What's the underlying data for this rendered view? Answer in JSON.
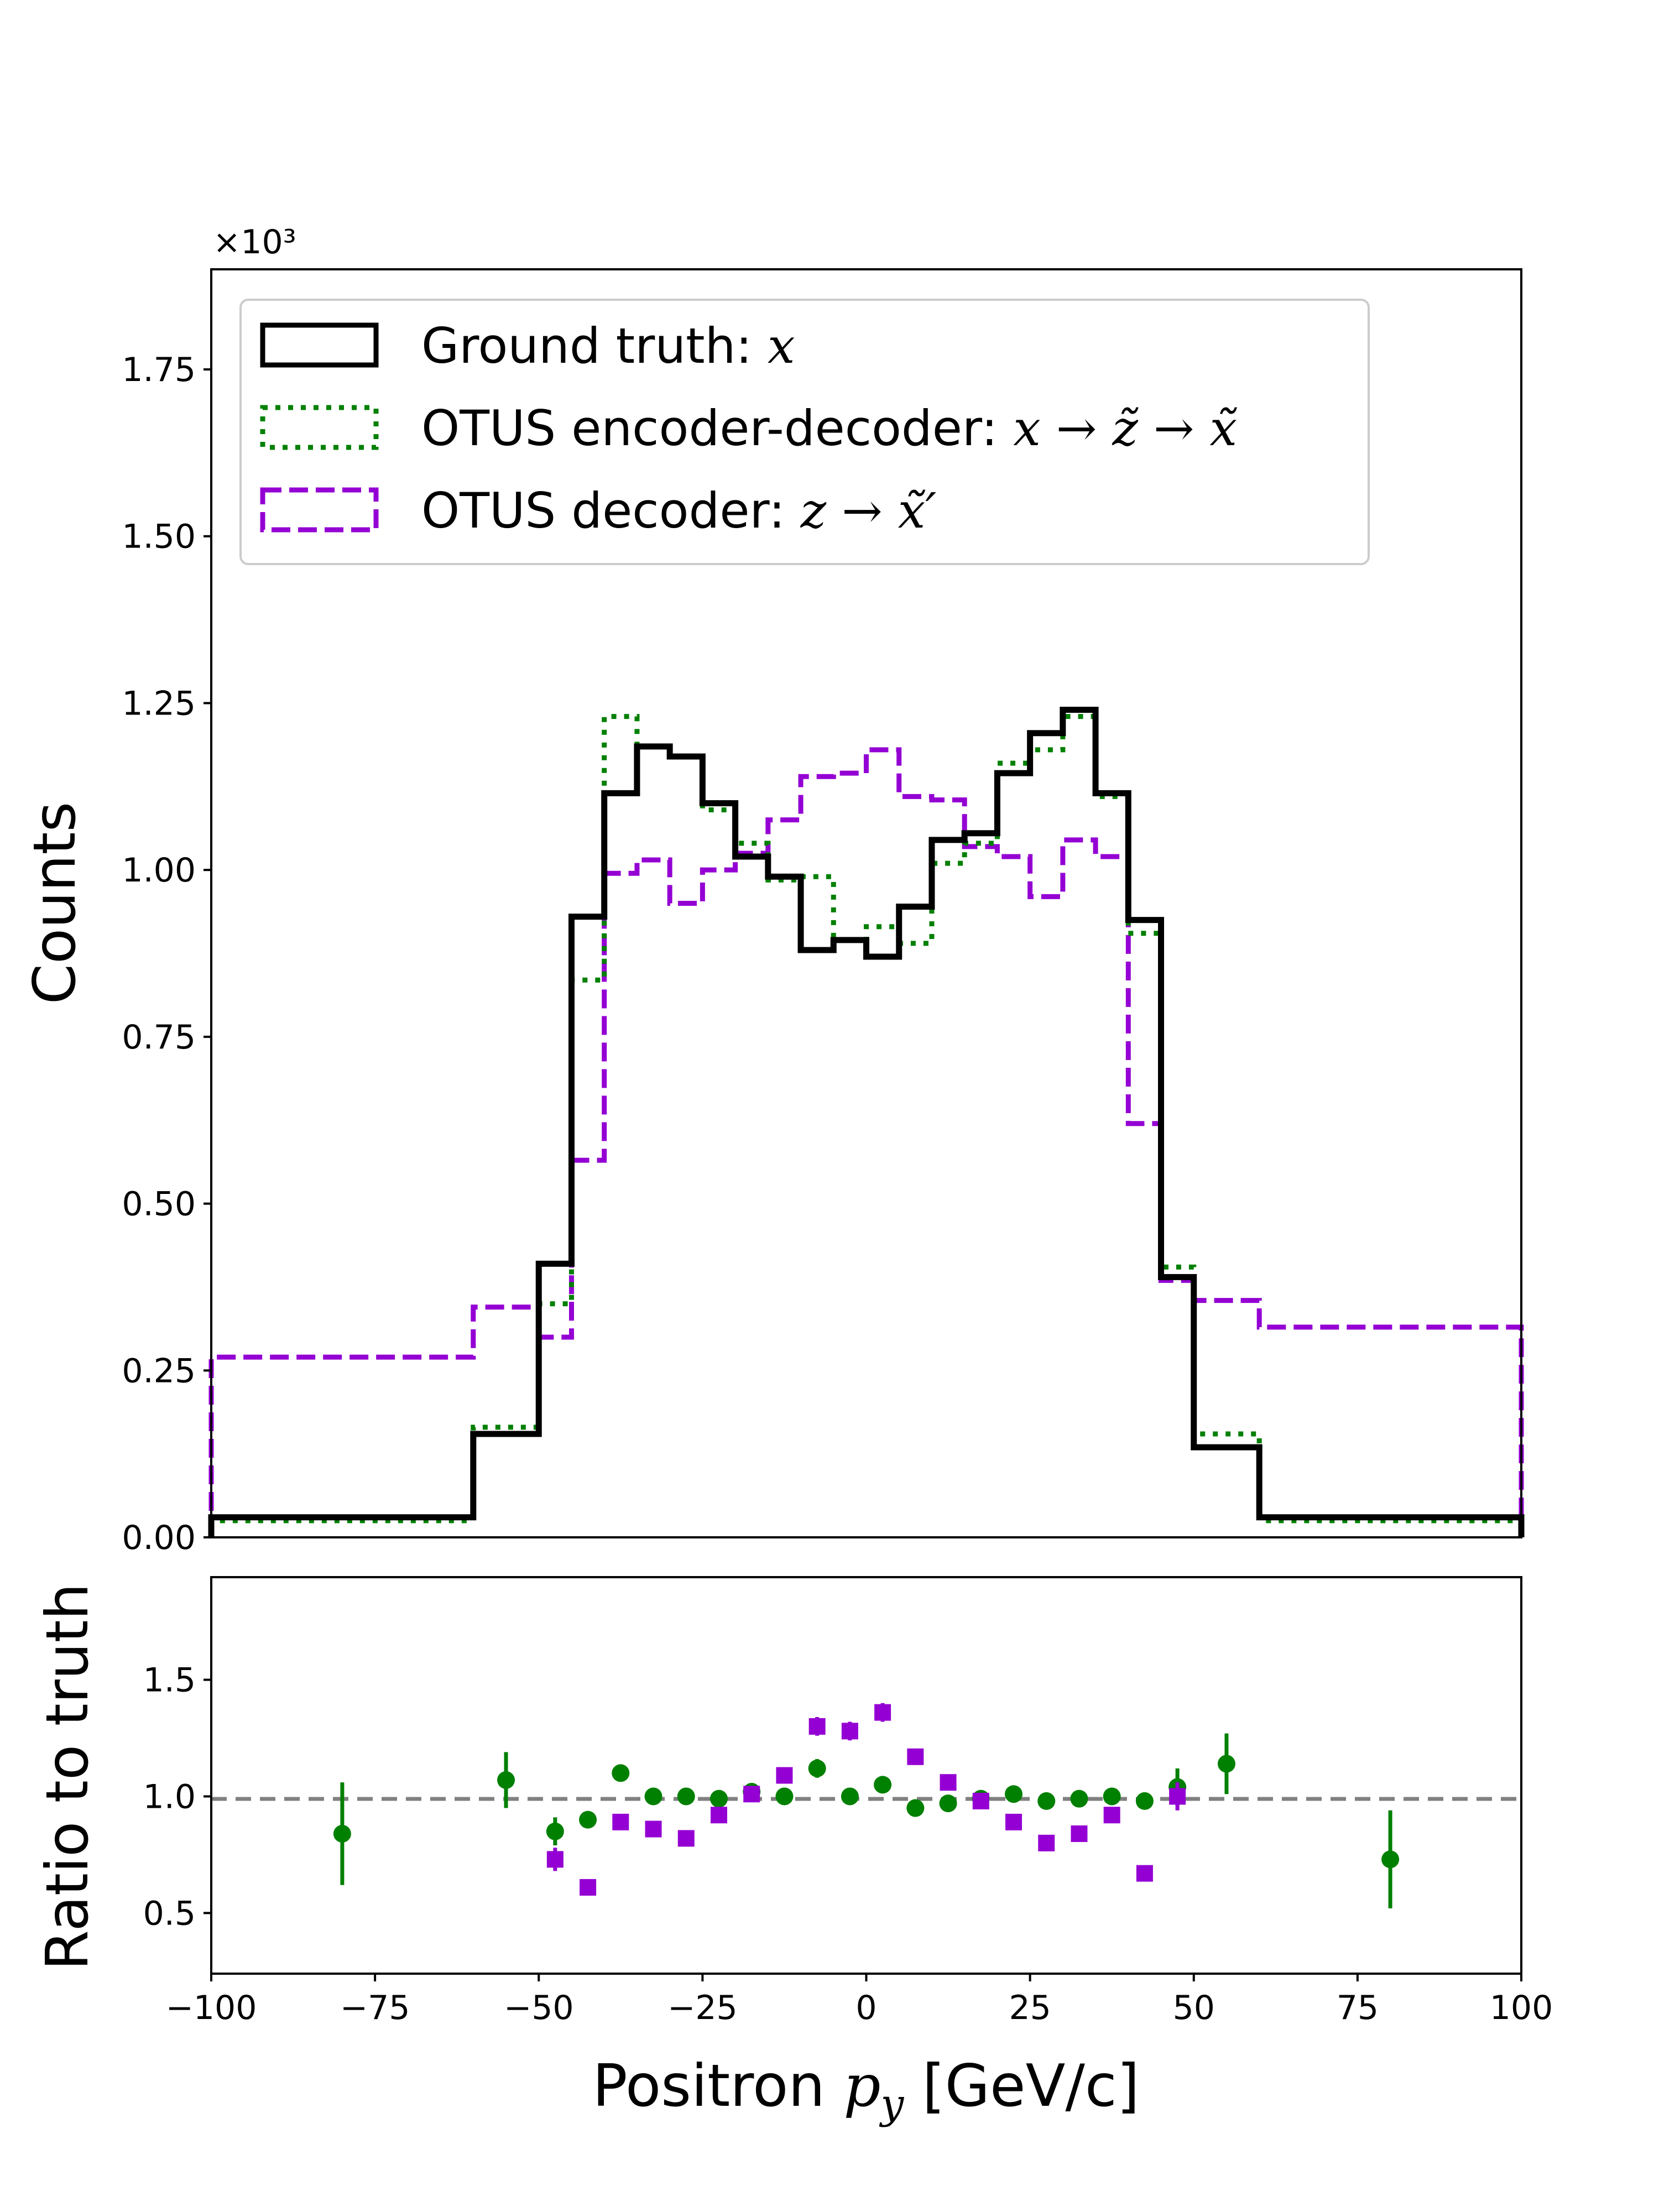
{
  "chart_data": [
    {
      "type": "histogram",
      "panel": "main",
      "ylabel": "Counts",
      "y_scale_label": "×10³",
      "ylim": [
        0,
        1.9
      ],
      "xlim": [
        -100,
        100
      ],
      "yticks": [
        "0.00",
        "0.25",
        "0.50",
        "0.75",
        "1.00",
        "1.25",
        "1.50",
        "1.75"
      ],
      "bin_edges": [
        -100,
        -60,
        -50,
        -45,
        -40,
        -35,
        -30,
        -25,
        -20,
        -15,
        -10,
        -5,
        0,
        5,
        10,
        15,
        20,
        25,
        30,
        35,
        40,
        45,
        50,
        60,
        100
      ],
      "legend_position": "upper-left",
      "series": [
        {
          "name": "Ground truth: x",
          "color": "#000000",
          "style": "solid",
          "values": [
            0.03,
            0.155,
            0.41,
            0.93,
            1.115,
            1.185,
            1.17,
            1.1,
            1.02,
            0.99,
            0.88,
            0.895,
            0.87,
            0.945,
            1.045,
            1.055,
            1.145,
            1.205,
            1.24,
            1.115,
            0.925,
            0.39,
            0.135,
            0.03
          ]
        },
        {
          "name": "OTUS encoder-decoder: x → z̃ → x̃",
          "color": "#008000",
          "style": "dotted",
          "values": [
            0.025,
            0.165,
            0.35,
            0.835,
            1.23,
            1.185,
            1.17,
            1.09,
            1.04,
            0.985,
            0.99,
            0.895,
            0.915,
            0.89,
            1.01,
            1.04,
            1.16,
            1.18,
            1.23,
            1.11,
            0.905,
            0.405,
            0.155,
            0.025
          ]
        },
        {
          "name": "OTUS decoder: z → x̃′",
          "color": "#9400d3",
          "style": "dashed",
          "values": [
            0.27,
            0.345,
            0.3,
            0.565,
            0.995,
            1.015,
            0.95,
            1.0,
            1.025,
            1.075,
            1.14,
            1.145,
            1.18,
            1.11,
            1.105,
            1.035,
            1.02,
            0.96,
            1.045,
            1.02,
            0.62,
            0.385,
            0.355,
            0.315
          ]
        }
      ]
    },
    {
      "type": "scatter",
      "panel": "ratio",
      "ylabel": "Ratio to truth",
      "xlabel": "Positron p_y [GeV/c]",
      "xlim": [
        -100,
        100
      ],
      "ylim": [
        0.24,
        1.94
      ],
      "yticks": [
        "0.5",
        "1.0",
        "1.5"
      ],
      "xticks": [
        "−100",
        "−75",
        "−50",
        "−25",
        "0",
        "25",
        "50",
        "75",
        "100"
      ],
      "reference_line": 1.0,
      "series": [
        {
          "name": "OTUS encoder-decoder",
          "color": "#008000",
          "marker": "circle",
          "x": [
            -80,
            -55,
            -47.5,
            -42.5,
            -37.5,
            -32.5,
            -27.5,
            -22.5,
            -17.5,
            -12.5,
            -7.5,
            -2.5,
            2.5,
            7.5,
            12.5,
            17.5,
            22.5,
            27.5,
            32.5,
            37.5,
            42.5,
            47.5,
            55,
            80
          ],
          "y": [
            0.84,
            1.07,
            0.85,
            0.9,
            1.1,
            1.0,
            1.0,
            0.99,
            1.02,
            1.0,
            1.12,
            1.0,
            1.05,
            0.95,
            0.97,
            0.99,
            1.01,
            0.98,
            0.99,
            1.0,
            0.98,
            1.04,
            1.14,
            0.73
          ],
          "yerr": [
            0.22,
            0.12,
            0.06,
            0.03,
            0.03,
            0.03,
            0.03,
            0.03,
            0.03,
            0.03,
            0.04,
            0.03,
            0.03,
            0.03,
            0.03,
            0.03,
            0.03,
            0.03,
            0.03,
            0.03,
            0.03,
            0.08,
            0.13,
            0.21
          ]
        },
        {
          "name": "OTUS decoder",
          "color": "#9400d3",
          "marker": "square",
          "x": [
            -47.5,
            -42.5,
            -37.5,
            -32.5,
            -27.5,
            -22.5,
            -17.5,
            -12.5,
            -7.5,
            -2.5,
            2.5,
            7.5,
            12.5,
            17.5,
            22.5,
            27.5,
            32.5,
            37.5,
            42.5,
            47.5
          ],
          "y": [
            0.73,
            0.61,
            0.89,
            0.86,
            0.82,
            0.92,
            1.01,
            1.09,
            1.3,
            1.28,
            1.36,
            1.17,
            1.06,
            0.98,
            0.89,
            0.8,
            0.84,
            0.92,
            0.67,
            1.0
          ],
          "yerr": [
            0.05,
            0.02,
            0.02,
            0.02,
            0.02,
            0.02,
            0.02,
            0.02,
            0.04,
            0.04,
            0.04,
            0.03,
            0.02,
            0.02,
            0.02,
            0.02,
            0.02,
            0.02,
            0.02,
            0.06
          ]
        }
      ]
    }
  ],
  "legend": {
    "entries": [
      {
        "text": "Ground truth: ",
        "math": "x"
      },
      {
        "text": "OTUS encoder-decoder: ",
        "math": "x → z̃ → x̃"
      },
      {
        "text": "OTUS decoder: ",
        "math": "z → x̃′"
      }
    ]
  },
  "xlabel_parts": {
    "before": "Positron ",
    "var": "p",
    "sub": "y",
    "after": " [GeV/c]"
  }
}
